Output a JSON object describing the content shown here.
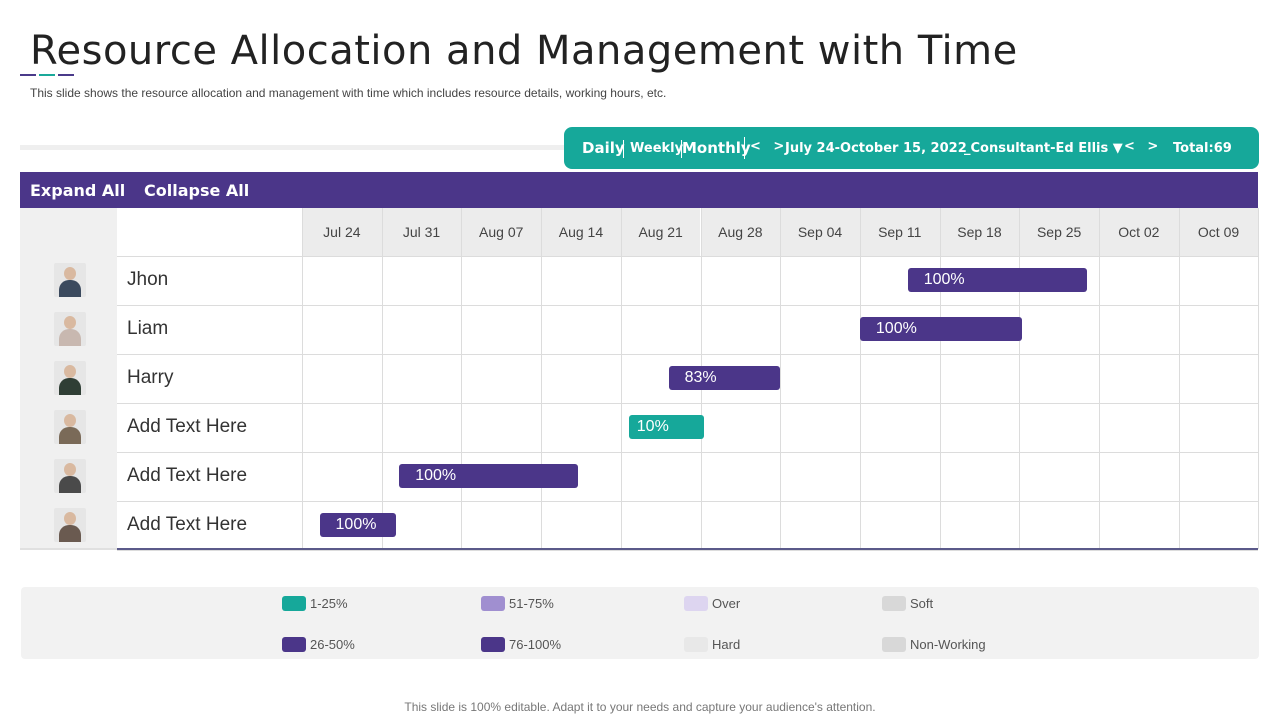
{
  "header": {
    "title": "Resource Allocation and Management with Time",
    "subtitle": "This slide shows the resource allocation and management with time which includes resource details, working hours, etc."
  },
  "toolbar": {
    "daily": "Daily",
    "weekly": "Weekly",
    "monthly": "Monthly",
    "nav_prev_next_1": "< >",
    "date_range": "July 24-October  15, 2022",
    "consultant": "_Consultant-Ed Ellis ▼",
    "nav_prev_next_2": "< >",
    "total": "Total:69",
    "bg_color": "#16a89a"
  },
  "actions": {
    "expand_all": "Expand All",
    "collapse_all": "Collapse All"
  },
  "timeline": {
    "dates": [
      "Jul 24",
      "Jul 31",
      "Aug 07",
      "Aug 14",
      "Aug 21",
      "Aug 28",
      "Sep 04",
      "Sep 11",
      "Sep 18",
      "Sep 25",
      "Oct 02",
      "Oct 09"
    ]
  },
  "resources": [
    {
      "name": "Jhon",
      "allocation": "100%",
      "color": "purple",
      "start_week": 7.6,
      "end_week": 9.85,
      "avatar_color": "#3b4a5e"
    },
    {
      "name": "Liam",
      "allocation": "100%",
      "color": "purple",
      "start_week": 7.0,
      "end_week": 9.03,
      "avatar_color": "#c8b8b0"
    },
    {
      "name": "Harry",
      "allocation": "83%",
      "color": "purple",
      "start_week": 4.6,
      "end_week": 6.0,
      "avatar_color": "#2f3e35"
    },
    {
      "name": "Add Text Here",
      "allocation": "10%",
      "color": "teal",
      "start_week": 4.1,
      "end_week": 5.05,
      "avatar_color": "#7a6a58"
    },
    {
      "name": "Add Text Here",
      "allocation": "100%",
      "color": "purple",
      "start_week": 1.22,
      "end_week": 3.46,
      "avatar_color": "#4a4a4a"
    },
    {
      "name": "Add Text Here",
      "allocation": "100%",
      "color": "purple",
      "start_week": 0.22,
      "end_week": 1.18,
      "avatar_color": "#6a5a50"
    }
  ],
  "legend": [
    {
      "label": "1-25%",
      "color": "#16a89a"
    },
    {
      "label": "26-50%",
      "color": "#4b3689"
    },
    {
      "label": "51-75%",
      "color": "#a08fd0"
    },
    {
      "label": "76-100%",
      "color": "#4b3689"
    },
    {
      "label": "Over",
      "color": "#ddd5f0"
    },
    {
      "label": "Hard",
      "color": "#e8e8e8"
    },
    {
      "label": "Soft",
      "color": "#d8d8d8"
    },
    {
      "label": "Non-Working",
      "color": "#d8d8d8"
    }
  ],
  "footer": "This slide is 100% editable. Adapt it to your needs and capture your audience's attention."
}
